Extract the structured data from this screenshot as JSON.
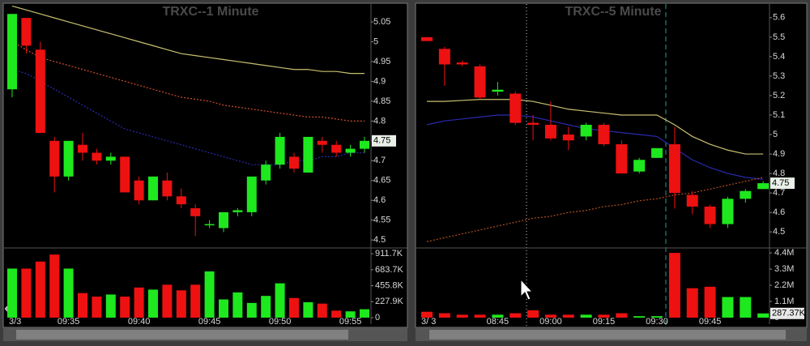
{
  "chart_data": [
    {
      "type": "candlestick",
      "title": "TRXC--1 Minute",
      "date_label": "3/3",
      "up_color": "#1ee81e",
      "down_color": "#ee1111",
      "open": [
        4.88,
        5.06,
        4.98,
        4.75,
        4.66,
        4.74,
        4.72,
        4.7,
        4.71,
        4.65,
        4.6,
        4.65,
        4.61,
        4.58,
        4.54,
        4.53,
        4.57,
        4.57,
        4.65,
        4.69,
        4.71,
        4.67,
        4.75,
        4.74,
        4.72,
        4.73
      ],
      "high": [
        5.07,
        5.06,
        5.0,
        4.76,
        4.75,
        4.77,
        4.73,
        4.72,
        4.71,
        4.66,
        4.66,
        4.67,
        4.63,
        4.59,
        4.55,
        4.57,
        4.58,
        4.66,
        4.7,
        4.77,
        4.72,
        4.76,
        4.76,
        4.75,
        4.74,
        4.76
      ],
      "low": [
        4.86,
        4.97,
        4.77,
        4.62,
        4.65,
        4.7,
        4.69,
        4.69,
        4.62,
        4.59,
        4.6,
        4.6,
        4.58,
        4.51,
        4.53,
        4.52,
        4.56,
        4.56,
        4.64,
        4.68,
        4.67,
        4.67,
        4.72,
        4.71,
        4.71,
        4.72
      ],
      "close": [
        5.07,
        4.99,
        4.77,
        4.66,
        4.75,
        4.72,
        4.7,
        4.71,
        4.62,
        4.6,
        4.66,
        4.61,
        4.59,
        4.56,
        4.54,
        4.57,
        4.575,
        4.66,
        4.69,
        4.76,
        4.68,
        4.76,
        4.74,
        4.72,
        4.73,
        4.75
      ],
      "ylim": [
        4.486,
        5.095
      ],
      "yticks": [
        4.5,
        4.55,
        4.6,
        4.65,
        4.7,
        4.75,
        4.8,
        4.85,
        4.9,
        4.95,
        5,
        5.05
      ],
      "overlays": [
        {
          "color": "#c8c070",
          "dash": false,
          "values": [
            5.09,
            5.08,
            5.07,
            5.06,
            5.05,
            5.04,
            5.03,
            5.02,
            5.01,
            5.0,
            4.99,
            4.98,
            4.97,
            4.965,
            4.96,
            4.955,
            4.95,
            4.945,
            4.94,
            4.935,
            4.93,
            4.93,
            4.925,
            4.925,
            4.92,
            4.92
          ]
        },
        {
          "color": "#d0502a",
          "dash": true,
          "values": [
            5.0,
            4.98,
            4.96,
            4.95,
            4.94,
            4.93,
            4.92,
            4.91,
            4.9,
            4.89,
            4.88,
            4.87,
            4.86,
            4.855,
            4.85,
            4.84,
            4.835,
            4.83,
            4.825,
            4.82,
            4.815,
            4.81,
            4.81,
            4.805,
            4.8,
            4.8
          ]
        },
        {
          "color": "#2a2ab0",
          "dash": true,
          "values": [
            4.93,
            4.92,
            4.9,
            4.88,
            4.86,
            4.84,
            4.82,
            4.8,
            4.78,
            4.77,
            4.76,
            4.75,
            4.74,
            4.73,
            4.72,
            4.71,
            4.7,
            4.69,
            4.69,
            4.69,
            4.7,
            4.7,
            4.71,
            4.71,
            4.72,
            4.72
          ]
        }
      ],
      "volume": {
        "categories": [
          null,
          null,
          null,
          null,
          "09:35",
          null,
          null,
          null,
          null,
          "09:40",
          null,
          null,
          null,
          null,
          "09:45",
          null,
          null,
          null,
          null,
          "09:50",
          null,
          null,
          null,
          null,
          "09:55",
          null
        ],
        "values": [
          700000,
          700000,
          800000,
          900000,
          700000,
          350000,
          300000,
          330000,
          300000,
          430000,
          400000,
          470000,
          390000,
          470000,
          660000,
          260000,
          360000,
          210000,
          310000,
          490000,
          280000,
          220000,
          200000,
          100000,
          90000,
          120000
        ],
        "ylim": [
          0,
          948000
        ],
        "yticks": [
          0,
          {
            "value": 227900,
            "label": "227.9K"
          },
          {
            "value": 455800,
            "label": "455.8K"
          },
          {
            "value": 683700,
            "label": "683.7K"
          },
          {
            "value": 911700,
            "label": "911.7K"
          }
        ]
      }
    },
    {
      "type": "candlestick",
      "title": "TRXC--5 Minute",
      "date_label": "3/ 3",
      "up_color": "#1ee81e",
      "down_color": "#ee1111",
      "open": [
        5.5,
        5.44,
        5.37,
        5.35,
        5.22,
        5.21,
        5.06,
        5.05,
        5.0,
        4.99,
        5.05,
        4.95,
        4.81,
        4.88,
        4.95,
        4.69,
        4.63,
        4.54,
        4.67,
        4.72
      ],
      "high": [
        5.5,
        5.45,
        5.38,
        5.36,
        5.27,
        5.22,
        5.1,
        5.17,
        5.04,
        5.06,
        5.06,
        4.97,
        4.88,
        4.93,
        5.04,
        4.71,
        4.64,
        4.68,
        4.72,
        4.76
      ],
      "low": [
        5.48,
        5.25,
        5.35,
        5.18,
        5.2,
        5.05,
        4.97,
        4.97,
        4.92,
        4.97,
        4.94,
        4.8,
        4.8,
        4.88,
        4.62,
        4.59,
        4.52,
        4.52,
        4.65,
        4.72
      ],
      "close": [
        5.48,
        5.36,
        5.36,
        5.19,
        5.23,
        5.06,
        5.05,
        4.98,
        4.97,
        5.05,
        4.95,
        4.8,
        4.87,
        4.93,
        4.7,
        4.63,
        4.54,
        4.67,
        4.71,
        4.75
      ],
      "ylim": [
        4.43,
        5.67
      ],
      "yticks": [
        4.5,
        4.6,
        4.7,
        4.8,
        4.9,
        5,
        5.1,
        5.2,
        5.3,
        5.4,
        5.5,
        5.6
      ],
      "overlays": [
        {
          "color": "#c8c070",
          "dash": false,
          "values": [
            5.17,
            5.17,
            5.175,
            5.18,
            5.18,
            5.18,
            5.17,
            5.15,
            5.13,
            5.12,
            5.11,
            5.1,
            5.1,
            5.1,
            5.05,
            4.99,
            4.95,
            4.92,
            4.9,
            4.9
          ]
        },
        {
          "color": "#2a2ab0",
          "dash": false,
          "values": [
            5.05,
            5.07,
            5.08,
            5.09,
            5.1,
            5.1,
            5.09,
            5.07,
            5.05,
            5.03,
            5.02,
            5.01,
            5.0,
            4.99,
            4.93,
            4.87,
            4.83,
            4.8,
            4.78,
            4.77
          ]
        },
        {
          "color": "#b05020",
          "dash": true,
          "values": [
            4.45,
            4.47,
            4.49,
            4.51,
            4.53,
            4.55,
            4.57,
            4.58,
            4.6,
            4.61,
            4.63,
            4.64,
            4.66,
            4.67,
            4.69,
            4.7,
            4.72,
            4.74,
            4.76,
            4.78
          ]
        }
      ],
      "volume": {
        "categories": [
          null,
          null,
          null,
          null,
          "08:45",
          null,
          null,
          "09:00",
          null,
          null,
          "09:15",
          null,
          null,
          "09:30",
          null,
          null,
          "09:45",
          null,
          null,
          null
        ],
        "values": [
          400000,
          300000,
          200000,
          200000,
          200000,
          300000,
          500000,
          200000,
          200000,
          200000,
          200000,
          300000,
          100000,
          100000,
          4400000,
          2000000,
          2100000,
          1400000,
          1400000,
          287370
        ],
        "last_value_label": "287.37K",
        "ylim": [
          0,
          4516000
        ],
        "yticks": [
          0,
          {
            "value": 1100000,
            "label": "1.1M"
          },
          {
            "value": 2200000,
            "label": "2.2M"
          },
          {
            "value": 3300000,
            "label": "3.3M"
          },
          {
            "value": 4400000,
            "label": "4.4M"
          }
        ]
      }
    }
  ]
}
